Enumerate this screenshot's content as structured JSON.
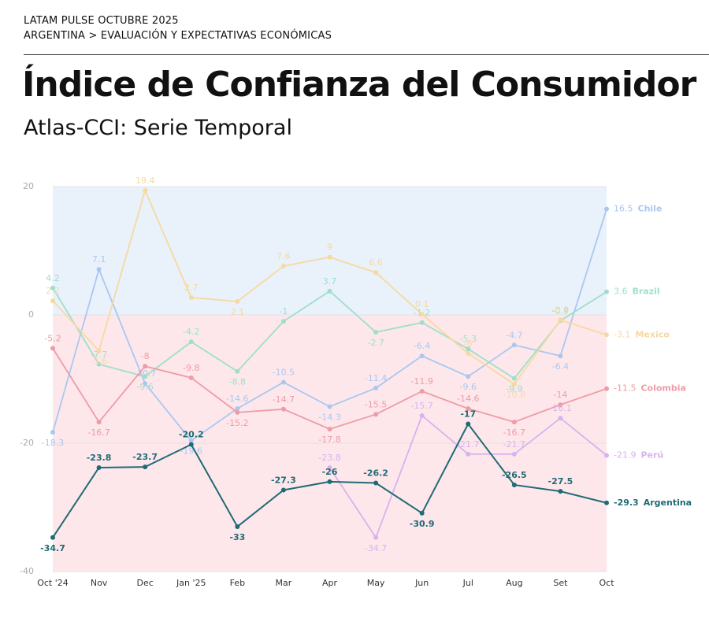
{
  "header": {
    "kicker": "LATAM PULSE OCTUBRE 2025",
    "breadcrumb": "ARGENTINA > EVALUACIÓN Y EXPECTATIVAS ECONÓMICAS"
  },
  "chart_data": {
    "type": "line",
    "title": "Índice de Confianza del Consumidor",
    "subtitle": "Atlas-CCI: Serie Temporal",
    "categories": [
      "Oct '24",
      "Nov",
      "Dec",
      "Jan '25",
      "Feb",
      "Mar",
      "Apr",
      "May",
      "Jun",
      "Jul",
      "Aug",
      "Set",
      "Oct"
    ],
    "ylim": [
      -40,
      20
    ],
    "yticks": [
      -40,
      -20,
      0,
      20
    ],
    "positive_band_color": "#e9f1fb",
    "negative_band_color": "#fde7eb",
    "series": [
      {
        "name": "Chile",
        "color": "#a9c8f0",
        "values": [
          -18.3,
          7.1,
          -10.7,
          -19.6,
          -14.6,
          -10.5,
          -14.3,
          -11.4,
          -6.4,
          -9.6,
          -4.7,
          -6.4,
          16.5
        ]
      },
      {
        "name": "Brazil",
        "color": "#9edfca",
        "values": [
          4.2,
          -7.7,
          -9.6,
          -4.2,
          -8.8,
          -1,
          3.7,
          -2.7,
          -1.2,
          -5.3,
          -9.9,
          -0.9,
          3.6
        ]
      },
      {
        "name": "Mexico",
        "color": "#f6d9a0",
        "values": [
          2.2,
          -5.6,
          19.4,
          2.7,
          2.1,
          7.6,
          9,
          6.6,
          0.1,
          -6,
          -10.8,
          -0.8,
          -3.1
        ]
      },
      {
        "name": "Colombia",
        "color": "#ef9ba5",
        "values": [
          -5.2,
          -16.7,
          -8,
          -9.8,
          -15.2,
          -14.7,
          -17.8,
          -15.5,
          -11.9,
          -14.6,
          -16.7,
          -14,
          -11.5
        ]
      },
      {
        "name": "Perú",
        "color": "#d8b2ee",
        "values": [
          null,
          null,
          null,
          null,
          null,
          null,
          -23.8,
          -34.7,
          -15.7,
          -21.7,
          -21.7,
          -16.1,
          -21.9
        ]
      },
      {
        "name": "Argentina",
        "color": "#1f6b75",
        "values": [
          -34.7,
          -23.8,
          -23.7,
          -20.2,
          -33,
          -27.3,
          -26,
          -26.2,
          -30.9,
          -17,
          -26.5,
          -27.5,
          -29.3
        ]
      }
    ]
  }
}
